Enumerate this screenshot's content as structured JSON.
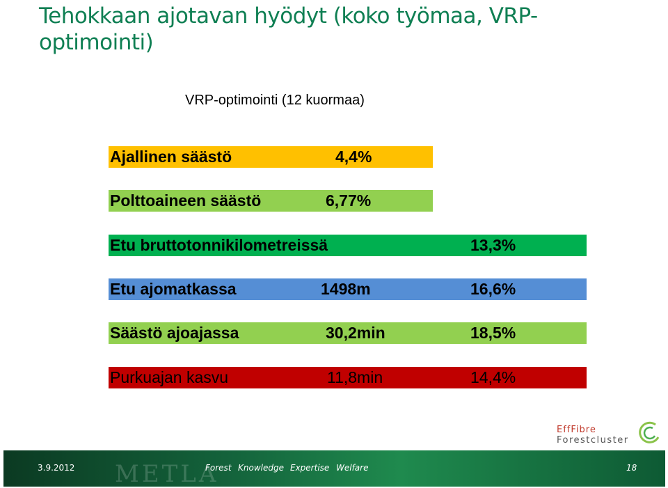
{
  "title": "Tehokkaan ajotavan hyödyt (koko työmaa, VRP-optimointi)",
  "subtitle": "VRP-optimointi (12 kuormaa)",
  "rows": [
    {
      "label": "Ajallinen säästö",
      "value": "",
      "percent": "4,4%",
      "color": "#ffc000"
    },
    {
      "label": "Polttoaineen säästö",
      "value": "",
      "percent": "6,77%",
      "color": "#92d050"
    },
    {
      "label": "Etu bruttotonnikilometreissä",
      "value": "",
      "percent": "13,3%",
      "color": "#00b050"
    },
    {
      "label": "Etu ajomatkassa",
      "value": "1498m",
      "percent": "16,6%",
      "color": "#558ed5"
    },
    {
      "label": "Säästö ajoajassa",
      "value": "30,2min",
      "percent": "18,5%",
      "color": "#92d050"
    },
    {
      "label": "Purkuajan kasvu",
      "value": "11,8min",
      "percent": "14,4%",
      "color": "#c00000"
    }
  ],
  "logo": {
    "line1": "EffFibre",
    "line2": "Forestcluster"
  },
  "footer": {
    "date": "3.9.2012",
    "org": "METLA",
    "words": [
      "Forest",
      "Knowledge",
      "Expertise",
      "Welfare"
    ],
    "page": "18"
  }
}
